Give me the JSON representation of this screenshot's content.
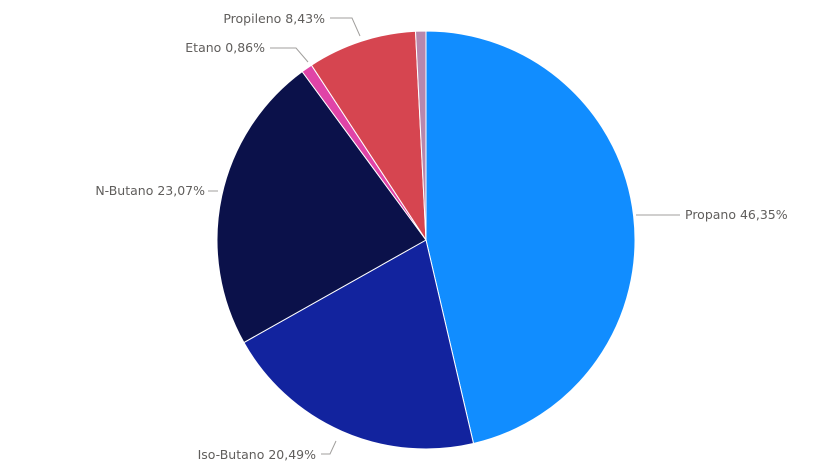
{
  "chart_data": {
    "type": "pie",
    "start": "12 o'clock, clockwise",
    "slices": [
      {
        "label": "Propano",
        "value": 46.35,
        "display": "Propano 46,35%",
        "color": "#118DFF"
      },
      {
        "label": "Iso-Butano",
        "value": 20.49,
        "display": "Iso-Butano 20,49%",
        "color": "#12239E"
      },
      {
        "label": "N-Butano",
        "value": 23.07,
        "display": "N-Butano 23,07%",
        "color": "#0B114A"
      },
      {
        "label": "Etano",
        "value": 0.86,
        "display": "Etano 0,86%",
        "color": "#E044A7"
      },
      {
        "label": "Propileno",
        "value": 8.43,
        "display": "Propileno 8,43%",
        "color": "#D64550"
      },
      {
        "label": "",
        "value": 0.8,
        "display": "",
        "color": "#B887AD"
      }
    ]
  }
}
